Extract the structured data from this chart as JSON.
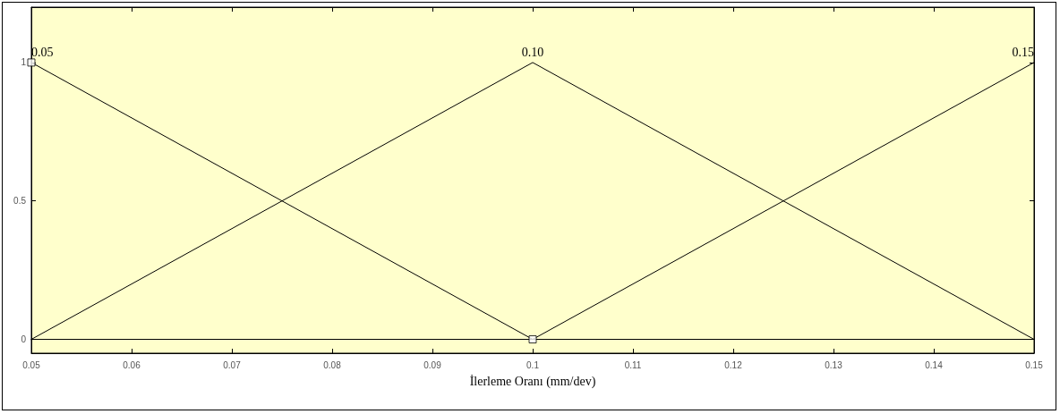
{
  "chart_data": {
    "type": "line",
    "xlabel": "İlerleme Oranı (mm/dev)",
    "x": [
      0.05,
      0.1,
      0.15
    ],
    "series": [
      {
        "color": "#000000",
        "values": [
          1,
          0,
          0
        ]
      },
      {
        "color": "#000000",
        "values": [
          0,
          1,
          0
        ]
      },
      {
        "color": "#000000",
        "values": [
          0,
          0,
          1
        ]
      },
      {
        "type": "scatter",
        "marker": "square",
        "color": "#000000",
        "x": [
          0.05,
          0.1
        ],
        "values": [
          1,
          0
        ]
      }
    ],
    "annotations": [
      {
        "text": "0.05",
        "x": 0.05,
        "y": 1
      },
      {
        "text": "0.10",
        "x": 0.1,
        "y": 1
      },
      {
        "text": "0.15",
        "x": 0.15,
        "y": 1
      }
    ],
    "xlim": [
      0.05,
      0.15
    ],
    "xticks": [
      0.05,
      0.06,
      0.07,
      0.08,
      0.09,
      0.1,
      0.11,
      0.12,
      0.13,
      0.14,
      0.15
    ],
    "ylim": [
      -0.05,
      1.2
    ],
    "yticks": [
      0,
      0.5,
      1
    ],
    "grid": false,
    "marker": "none",
    "line_style": "solid"
  }
}
